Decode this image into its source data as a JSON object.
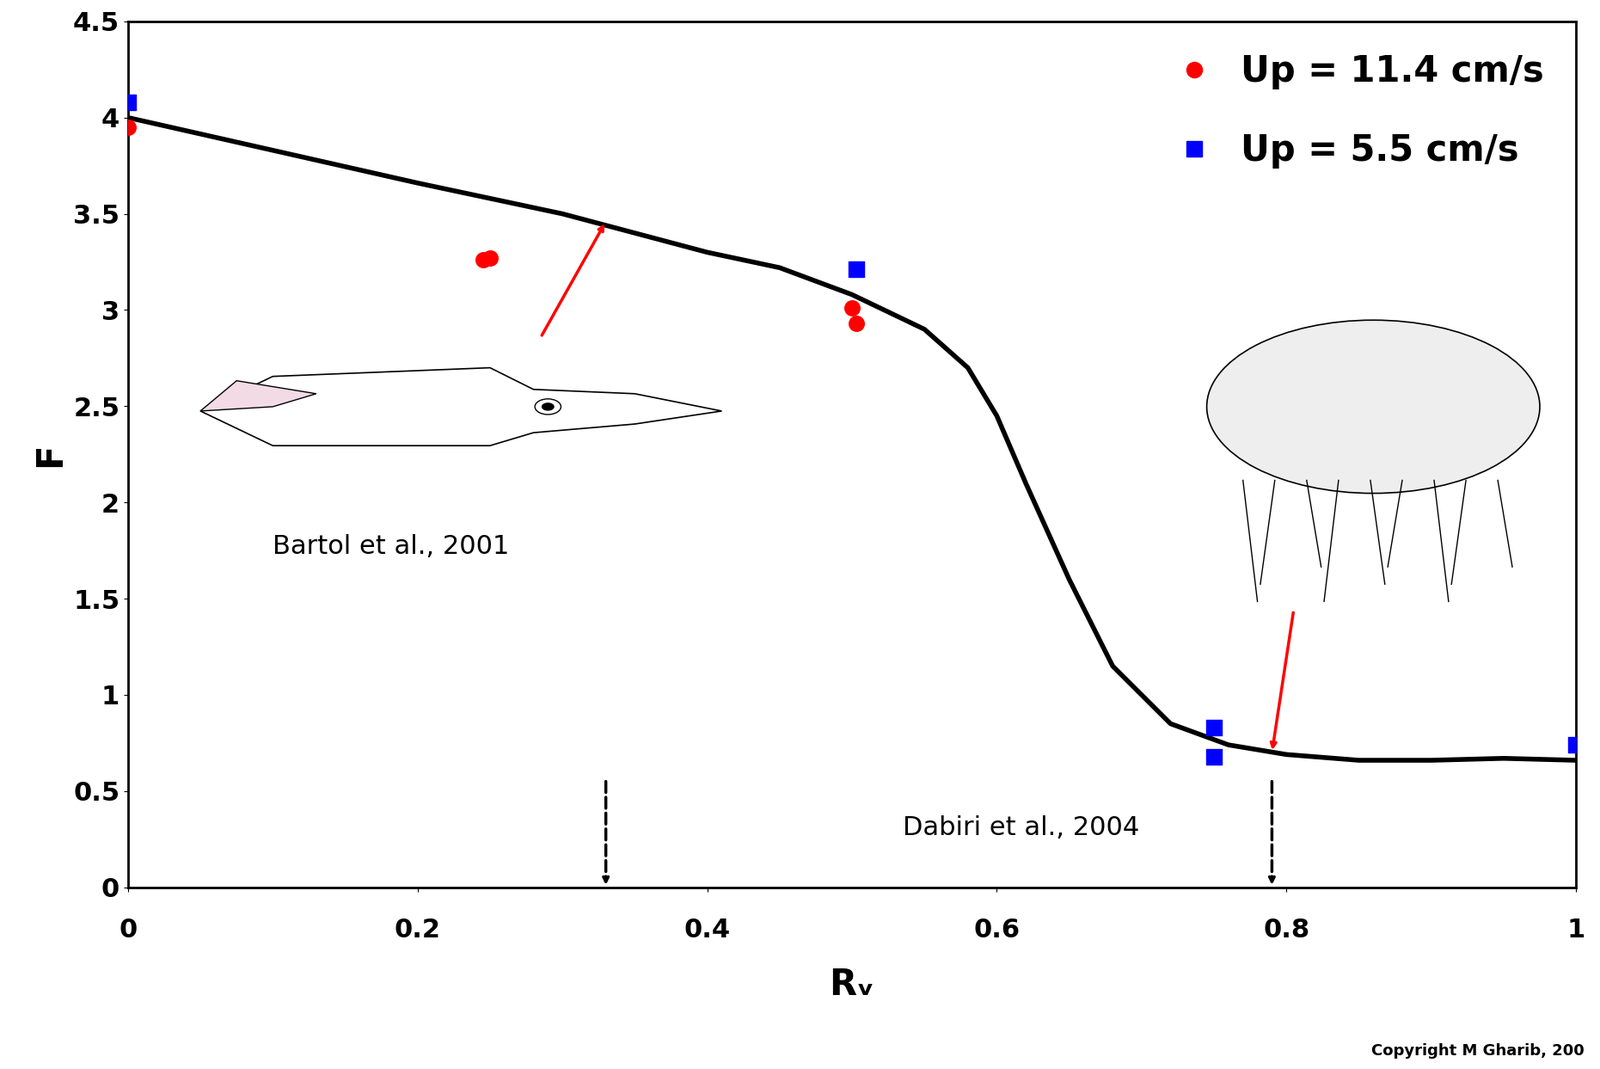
{
  "chart_data": {
    "type": "scatter",
    "xlabel": "Rᵥ",
    "ylabel": "F",
    "xlim": [
      0,
      1
    ],
    "ylim": [
      0,
      4.5
    ],
    "xticks": [
      0,
      0.2,
      0.4,
      0.6,
      0.8,
      1
    ],
    "yticks": [
      0,
      0.5,
      1,
      1.5,
      2,
      2.5,
      3,
      3.5,
      4,
      4.5
    ],
    "legend": "upper right",
    "series": [
      {
        "name": "Up = 11.4 cm/s",
        "type": "scatter",
        "color": "#ff0000",
        "marker": "circle",
        "x": [
          0,
          0.245,
          0.25,
          0.5,
          0.503
        ],
        "values": [
          3.95,
          3.26,
          3.27,
          3.01,
          2.93
        ]
      },
      {
        "name": "Up = 5.5 cm/s",
        "type": "scatter",
        "color": "#0000ff",
        "marker": "square",
        "x": [
          0,
          0.503,
          0.75,
          0.75,
          1.0
        ],
        "values": [
          4.08,
          3.21,
          0.83,
          0.68,
          0.74
        ]
      },
      {
        "type": "line",
        "color": "#000000",
        "line_style": "solid",
        "x": [
          0,
          0.1,
          0.2,
          0.3,
          0.4,
          0.45,
          0.5,
          0.55,
          0.58,
          0.6,
          0.62,
          0.65,
          0.68,
          0.72,
          0.76,
          0.8,
          0.85,
          0.9,
          0.95,
          1.0
        ],
        "values": [
          4.0,
          3.83,
          3.66,
          3.5,
          3.3,
          3.22,
          3.08,
          2.9,
          2.7,
          2.45,
          2.1,
          1.6,
          1.15,
          0.85,
          0.74,
          0.69,
          0.66,
          0.66,
          0.67,
          0.66
        ]
      }
    ],
    "annotations": [
      {
        "text": "Bartol et al., 2001",
        "x": 0.33,
        "y": 3.46
      },
      {
        "text": "Dabiri et al., 2004",
        "x": 0.79,
        "y": 0.7
      }
    ],
    "footnote": "Copyright M Gharib, 200"
  }
}
